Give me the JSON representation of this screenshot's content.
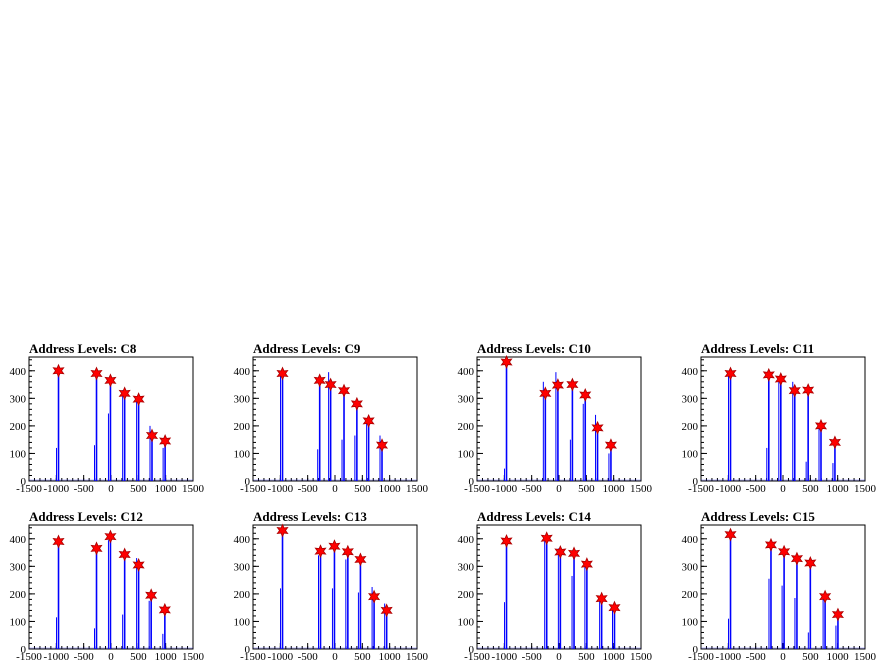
{
  "chart_data": [
    {
      "type": "bar",
      "title": "Address Levels: C8",
      "xlim": [
        -1500,
        1500
      ],
      "ylim": [
        0,
        450
      ],
      "xticks": [
        -1500,
        -1000,
        -500,
        0,
        500,
        1000,
        1500
      ],
      "yticks": [
        0,
        100,
        200,
        300,
        400
      ],
      "peaks": [
        {
          "x": -960,
          "y": 400
        },
        {
          "x": -265,
          "y": 390
        },
        {
          "x": -10,
          "y": 365
        },
        {
          "x": 250,
          "y": 318
        },
        {
          "x": 505,
          "y": 297
        },
        {
          "x": 750,
          "y": 165
        },
        {
          "x": 990,
          "y": 145
        }
      ],
      "secondary": [
        {
          "x": -960,
          "y": 120
        },
        {
          "x": -265,
          "y": 130
        },
        {
          "x": -10,
          "y": 245
        },
        {
          "x": 250,
          "y": 330
        },
        {
          "x": 505,
          "y": 300
        },
        {
          "x": 750,
          "y": 200
        },
        {
          "x": 990,
          "y": 120
        }
      ]
    },
    {
      "type": "bar",
      "title": "Address Levels: C9",
      "xlim": [
        -1500,
        1500
      ],
      "ylim": [
        0,
        450
      ],
      "xticks": [
        -1500,
        -1000,
        -500,
        0,
        500,
        1000,
        1500
      ],
      "yticks": [
        0,
        100,
        200,
        300,
        400
      ],
      "peaks": [
        {
          "x": -960,
          "y": 390
        },
        {
          "x": -280,
          "y": 365
        },
        {
          "x": -80,
          "y": 350
        },
        {
          "x": 165,
          "y": 328
        },
        {
          "x": 400,
          "y": 280
        },
        {
          "x": 615,
          "y": 218
        },
        {
          "x": 860,
          "y": 130
        }
      ],
      "secondary": [
        {
          "x": -960,
          "y": 400
        },
        {
          "x": -280,
          "y": 115
        },
        {
          "x": -80,
          "y": 395
        },
        {
          "x": 165,
          "y": 150
        },
        {
          "x": 400,
          "y": 165
        },
        {
          "x": 615,
          "y": 225
        },
        {
          "x": 860,
          "y": 165
        }
      ]
    },
    {
      "type": "bar",
      "title": "Address Levels: C10",
      "xlim": [
        -1500,
        1500
      ],
      "ylim": [
        0,
        450
      ],
      "xticks": [
        -1500,
        -1000,
        -500,
        0,
        500,
        1000,
        1500
      ],
      "yticks": [
        0,
        100,
        200,
        300,
        400
      ],
      "peaks": [
        {
          "x": -960,
          "y": 432
        },
        {
          "x": -250,
          "y": 318
        },
        {
          "x": -20,
          "y": 348
        },
        {
          "x": 245,
          "y": 350
        },
        {
          "x": 480,
          "y": 312
        },
        {
          "x": 705,
          "y": 193
        },
        {
          "x": 950,
          "y": 130
        }
      ],
      "secondary": [
        {
          "x": -960,
          "y": 45
        },
        {
          "x": -250,
          "y": 360
        },
        {
          "x": -20,
          "y": 395
        },
        {
          "x": 245,
          "y": 150
        },
        {
          "x": 480,
          "y": 280
        },
        {
          "x": 705,
          "y": 240
        },
        {
          "x": 950,
          "y": 100
        }
      ]
    },
    {
      "type": "bar",
      "title": "Address Levels: C11",
      "xlim": [
        -1500,
        1500
      ],
      "ylim": [
        0,
        450
      ],
      "xticks": [
        -1500,
        -1000,
        -500,
        0,
        500,
        1000,
        1500
      ],
      "yticks": [
        0,
        100,
        200,
        300,
        400
      ],
      "peaks": [
        {
          "x": -960,
          "y": 390
        },
        {
          "x": -260,
          "y": 385
        },
        {
          "x": -40,
          "y": 370
        },
        {
          "x": 215,
          "y": 328
        },
        {
          "x": 460,
          "y": 330
        },
        {
          "x": 695,
          "y": 200
        },
        {
          "x": 950,
          "y": 140
        }
      ],
      "secondary": [
        {
          "x": -960,
          "y": 400
        },
        {
          "x": -260,
          "y": 120
        },
        {
          "x": -40,
          "y": 380
        },
        {
          "x": 215,
          "y": 360
        },
        {
          "x": 460,
          "y": 70
        },
        {
          "x": 695,
          "y": 210
        },
        {
          "x": 950,
          "y": 65
        }
      ]
    },
    {
      "type": "bar",
      "title": "Address Levels: C12",
      "xlim": [
        -1500,
        1500
      ],
      "ylim": [
        0,
        450
      ],
      "xticks": [
        -1500,
        -1000,
        -500,
        0,
        500,
        1000,
        1500
      ],
      "yticks": [
        0,
        100,
        200,
        300,
        400
      ],
      "peaks": [
        {
          "x": -960,
          "y": 390
        },
        {
          "x": -265,
          "y": 365
        },
        {
          "x": -10,
          "y": 408
        },
        {
          "x": 250,
          "y": 343
        },
        {
          "x": 505,
          "y": 305
        },
        {
          "x": 735,
          "y": 195
        },
        {
          "x": 985,
          "y": 142
        }
      ],
      "secondary": [
        {
          "x": -960,
          "y": 115
        },
        {
          "x": -265,
          "y": 75
        },
        {
          "x": -10,
          "y": 395
        },
        {
          "x": 250,
          "y": 125
        },
        {
          "x": 505,
          "y": 330
        },
        {
          "x": 735,
          "y": 175
        },
        {
          "x": 985,
          "y": 55
        }
      ]
    },
    {
      "type": "bar",
      "title": "Address Levels: C13",
      "xlim": [
        -1500,
        1500
      ],
      "ylim": [
        0,
        450
      ],
      "xticks": [
        -1500,
        -1000,
        -500,
        0,
        500,
        1000,
        1500
      ],
      "yticks": [
        0,
        100,
        200,
        300,
        400
      ],
      "peaks": [
        {
          "x": -960,
          "y": 430
        },
        {
          "x": -265,
          "y": 355
        },
        {
          "x": -10,
          "y": 373
        },
        {
          "x": 235,
          "y": 353
        },
        {
          "x": 465,
          "y": 325
        },
        {
          "x": 715,
          "y": 190
        },
        {
          "x": 945,
          "y": 140
        }
      ],
      "secondary": [
        {
          "x": -960,
          "y": 220
        },
        {
          "x": -265,
          "y": 340
        },
        {
          "x": -10,
          "y": 220
        },
        {
          "x": 235,
          "y": 325
        },
        {
          "x": 465,
          "y": 205
        },
        {
          "x": 715,
          "y": 225
        },
        {
          "x": 945,
          "y": 165
        }
      ]
    },
    {
      "type": "bar",
      "title": "Address Levels: C14",
      "xlim": [
        -1500,
        1500
      ],
      "ylim": [
        0,
        450
      ],
      "xticks": [
        -1500,
        -1000,
        -500,
        0,
        500,
        1000,
        1500
      ],
      "yticks": [
        0,
        100,
        200,
        300,
        400
      ],
      "peaks": [
        {
          "x": -960,
          "y": 392
        },
        {
          "x": -225,
          "y": 402
        },
        {
          "x": 25,
          "y": 352
        },
        {
          "x": 275,
          "y": 347
        },
        {
          "x": 510,
          "y": 308
        },
        {
          "x": 780,
          "y": 183
        },
        {
          "x": 1015,
          "y": 150
        }
      ],
      "secondary": [
        {
          "x": -960,
          "y": 170
        },
        {
          "x": -225,
          "y": 395
        },
        {
          "x": 25,
          "y": 365
        },
        {
          "x": 275,
          "y": 265
        },
        {
          "x": 510,
          "y": 300
        },
        {
          "x": 780,
          "y": 180
        },
        {
          "x": 1015,
          "y": 145
        }
      ]
    },
    {
      "type": "bar",
      "title": "Address Levels: C15",
      "xlim": [
        -1500,
        1500
      ],
      "ylim": [
        0,
        450
      ],
      "xticks": [
        -1500,
        -1000,
        -500,
        0,
        500,
        1000,
        1500
      ],
      "yticks": [
        0,
        100,
        200,
        300,
        400
      ],
      "peaks": [
        {
          "x": -960,
          "y": 415
        },
        {
          "x": -220,
          "y": 378
        },
        {
          "x": 20,
          "y": 353
        },
        {
          "x": 255,
          "y": 328
        },
        {
          "x": 500,
          "y": 312
        },
        {
          "x": 770,
          "y": 190
        },
        {
          "x": 1005,
          "y": 125
        }
      ],
      "secondary": [
        {
          "x": -960,
          "y": 110
        },
        {
          "x": -220,
          "y": 255
        },
        {
          "x": 20,
          "y": 230
        },
        {
          "x": 255,
          "y": 185
        },
        {
          "x": 500,
          "y": 60
        },
        {
          "x": 770,
          "y": 185
        },
        {
          "x": 1005,
          "y": 85
        }
      ]
    }
  ],
  "colors": {
    "histogram": "#0000ff",
    "marker_fill": "#ff0000",
    "marker_stroke": "#aa0000",
    "axis": "#000000"
  }
}
